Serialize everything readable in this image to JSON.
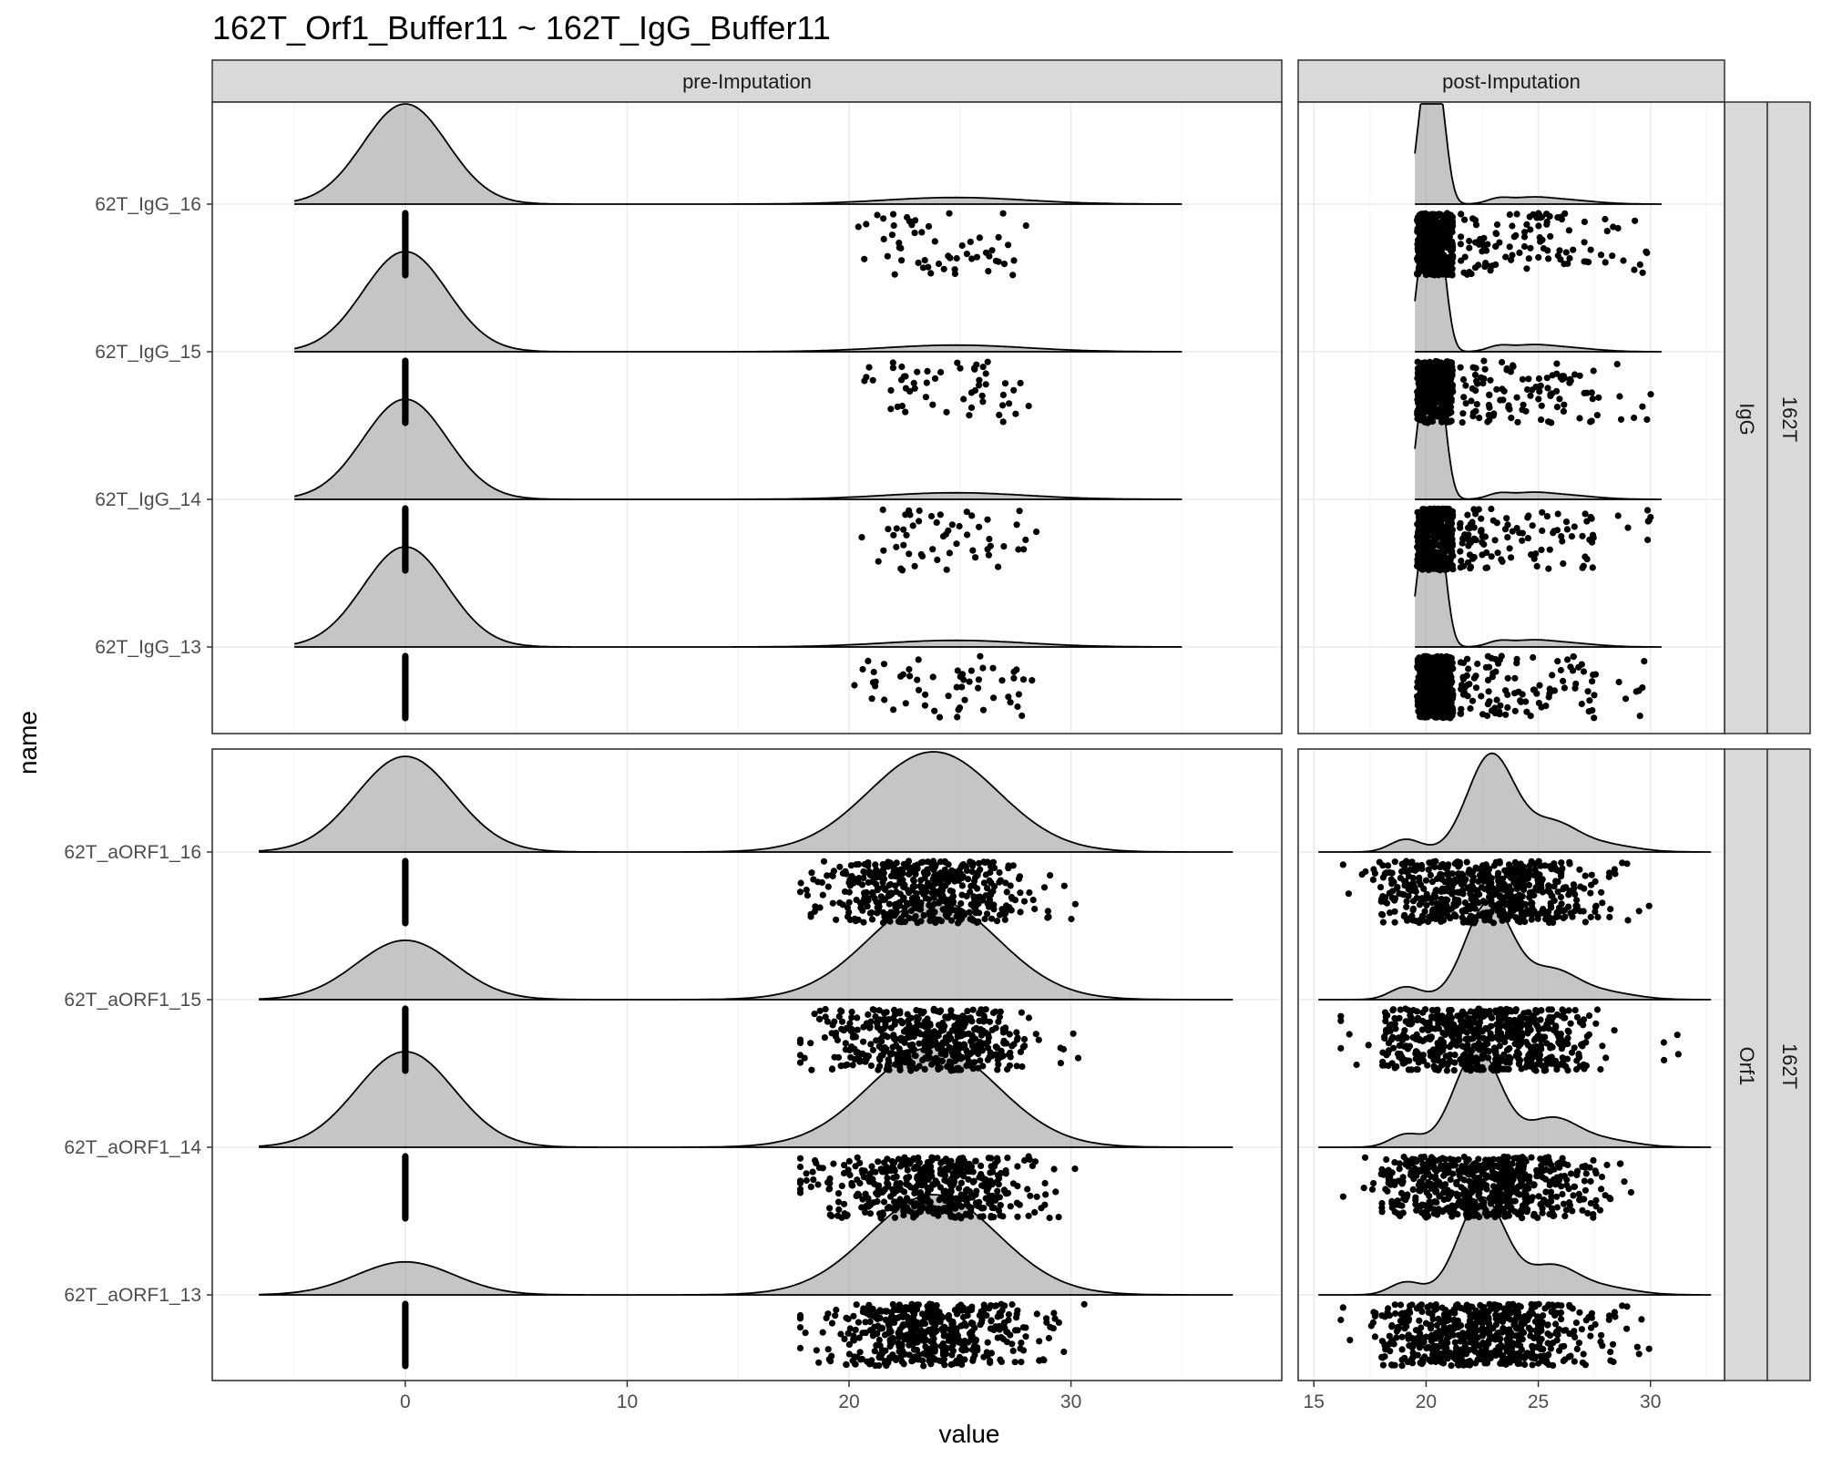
{
  "chart_data": {
    "type": "ridgeline",
    "title": "162T_Orf1_Buffer11 ~ 162T_IgG_Buffer11",
    "xlabel": "value",
    "ylabel": "name",
    "columns": [
      "pre-Imputation",
      "post-Imputation"
    ],
    "rows": [
      {
        "group": "IgG",
        "outer": "162T",
        "samples": [
          "62T_IgG_16",
          "62T_IgG_15",
          "62T_IgG_14",
          "62T_IgG_13"
        ]
      },
      {
        "group": "Orf1",
        "outer": "162T",
        "samples": [
          "62T_aORF1_16",
          "62T_aORF1_15",
          "62T_aORF1_14",
          "62T_aORF1_13"
        ]
      }
    ],
    "x_axes": {
      "pre-Imputation": {
        "ticks": [
          0,
          10,
          20,
          30
        ],
        "xlim": [
          -8.7,
          39.5
        ]
      },
      "post-Imputation": {
        "ticks": [
          15,
          20,
          25,
          30
        ],
        "xlim": [
          14.3,
          33.3
        ]
      }
    },
    "densities": {
      "IgG": {
        "pre": {
          "zero_mode": {
            "mean": 0,
            "sd": 1.9
          },
          "signal_mode": {
            "mean": 24.8,
            "sd": 3.2
          },
          "signal_fraction": 0.1,
          "range": [
            -5,
            35
          ]
        },
        "post": {
          "range": [
            19.5,
            30.5
          ],
          "imputed_peak": [
            19.6,
            20.8
          ],
          "observed_mode": 24.5
        }
      },
      "Orf1": {
        "pre": {
          "zero_mode": {
            "mean": 0,
            "sd": 2.2
          },
          "signal_mode": {
            "mean": 23.8,
            "sd": 2.9
          },
          "range": [
            -6.6,
            37.3
          ],
          "signal_fraction_by_sample": [
            0.58,
            0.69,
            0.58,
            0.8
          ]
        },
        "post": {
          "range": [
            15.2,
            32.7
          ],
          "peak": 22.8,
          "shoulder": 25.8,
          "small_mode": 19.2
        }
      }
    },
    "points": {
      "IgG": {
        "pre_observed_range": [
          20.2,
          30.1
        ],
        "post_imputed_range": [
          19.6,
          21.2
        ],
        "post_observed_range": [
          21.5,
          30.1
        ]
      },
      "Orf1": {
        "pre_observed_range": [
          17.8,
          30.6
        ],
        "post_range": [
          16.2,
          31.4
        ]
      }
    },
    "grid": true,
    "legend": "none"
  }
}
